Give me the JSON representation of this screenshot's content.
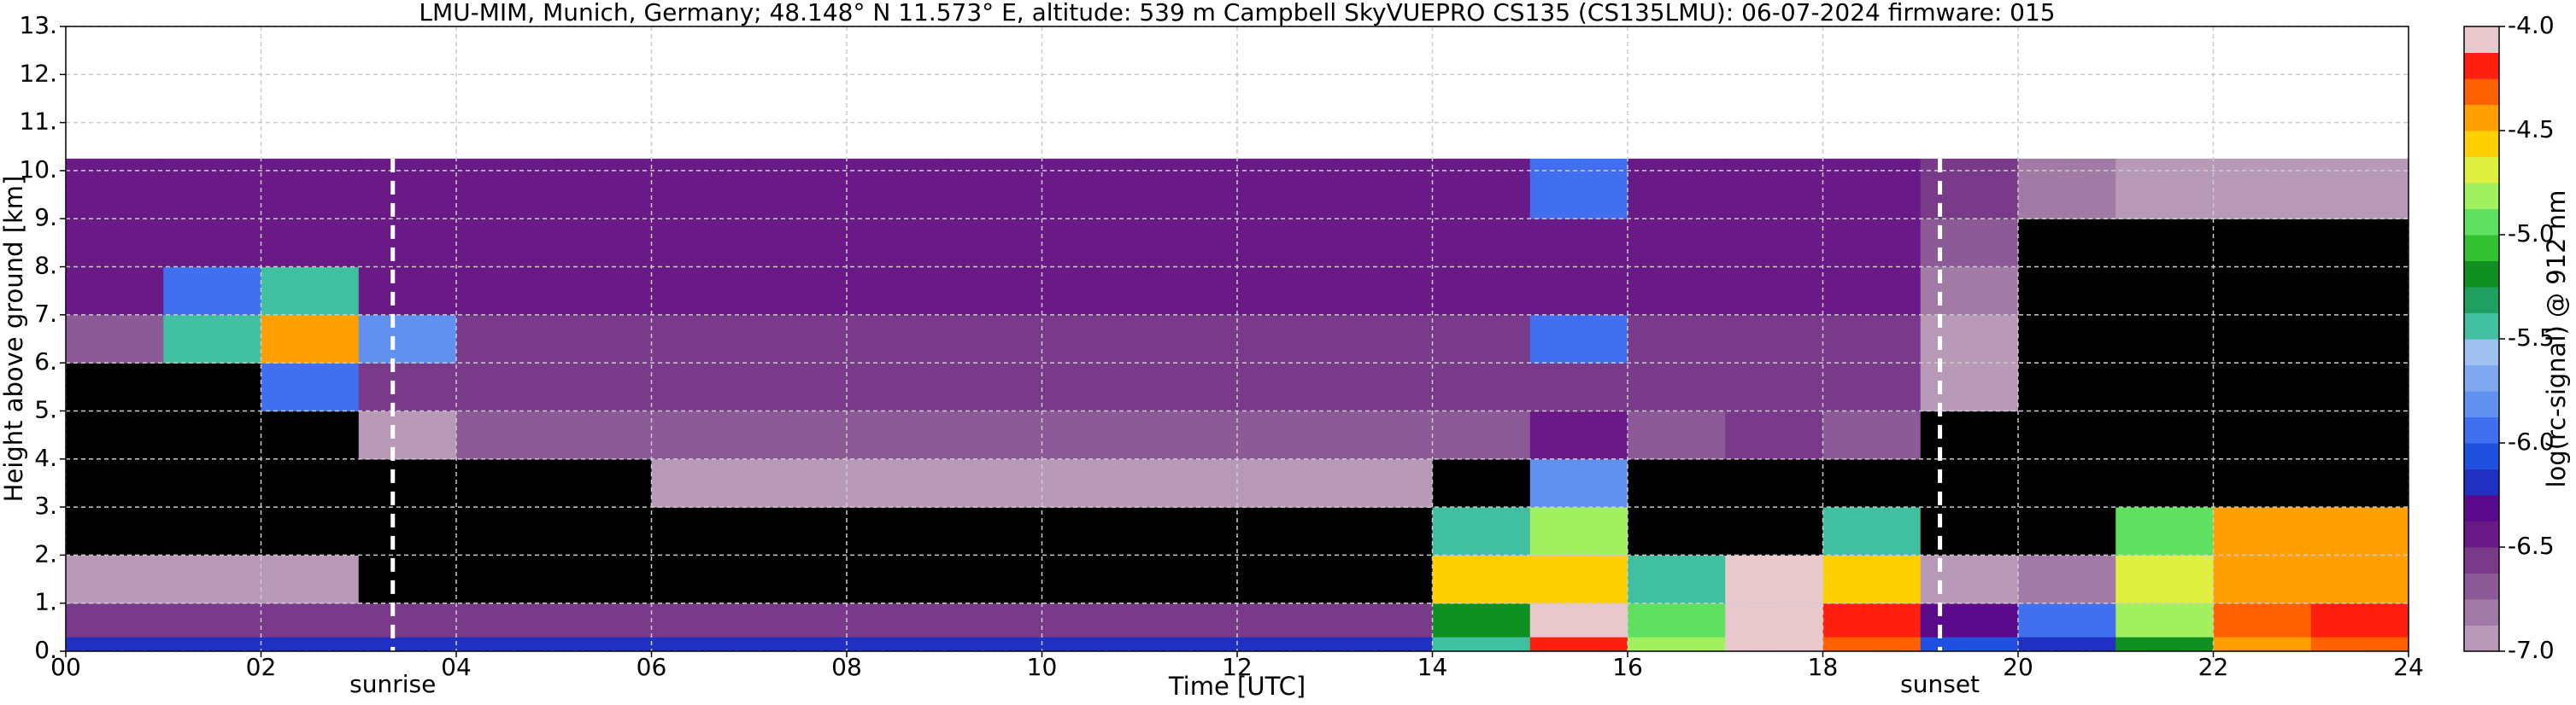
{
  "chart_data": {
    "type": "heatmap",
    "title": "LMU-MIM, Munich, Germany; 48.148° N 11.573° E, altitude: 539 m    Campbell SkyVUEPRO CS135 (CS135LMU): 06-07-2024    firmware: 015",
    "x_label": "Time [UTC]",
    "y_label": "Height above ground [km]",
    "colorbar_label": "log(rc-signal) @ 912 nm",
    "xlim": [
      0,
      24
    ],
    "ylim": [
      0,
      13
    ],
    "xticks": [
      {
        "value": 0,
        "label": "00"
      },
      {
        "value": 2,
        "label": "02"
      },
      {
        "value": 4,
        "label": "04"
      },
      {
        "value": 6,
        "label": "06"
      },
      {
        "value": 8,
        "label": "08"
      },
      {
        "value": 10,
        "label": "10"
      },
      {
        "value": 12,
        "label": "12"
      },
      {
        "value": 14,
        "label": "14"
      },
      {
        "value": 16,
        "label": "16"
      },
      {
        "value": 18,
        "label": "18"
      },
      {
        "value": 20,
        "label": "20"
      },
      {
        "value": 22,
        "label": "22"
      },
      {
        "value": 24,
        "label": "24"
      }
    ],
    "yticks": [
      {
        "value": 0,
        "label": "0."
      },
      {
        "value": 1,
        "label": "1."
      },
      {
        "value": 2,
        "label": "2."
      },
      {
        "value": 3,
        "label": "3."
      },
      {
        "value": 4,
        "label": "4."
      },
      {
        "value": 5,
        "label": "5."
      },
      {
        "value": 6,
        "label": "6."
      },
      {
        "value": 7,
        "label": "7."
      },
      {
        "value": 8,
        "label": "8."
      },
      {
        "value": 9,
        "label": "9."
      },
      {
        "value": 10,
        "label": "10."
      },
      {
        "value": 11,
        "label": "11."
      },
      {
        "value": 12,
        "label": "12."
      },
      {
        "value": 13,
        "label": "13."
      }
    ],
    "grid": true,
    "clim": [
      -7,
      -4
    ],
    "cticks": [
      {
        "value": -4,
        "label": "-4.0"
      },
      {
        "value": -4.5,
        "label": "-4.5"
      },
      {
        "value": -5,
        "label": "-5.0"
      },
      {
        "value": -5.5,
        "label": "-5.5"
      },
      {
        "value": -6,
        "label": "-6.0"
      },
      {
        "value": -6.5,
        "label": "-6.5"
      },
      {
        "value": -7,
        "label": "-7.0"
      }
    ],
    "colors": [
      "#b89ab8",
      "#a27aa6",
      "#8c5a96",
      "#7a3a8a",
      "#6a1a86",
      "#5a0a8a",
      "#2030c0",
      "#2050e0",
      "#4070f0",
      "#6090f0",
      "#80a8f0",
      "#a0c0f0",
      "#40c0a0",
      "#20a060",
      "#109020",
      "#30c030",
      "#60e060",
      "#a0f060",
      "#e0f040",
      "#ffd000",
      "#ffa000",
      "#ff6000",
      "#ff2010",
      "#e8c8cc"
    ],
    "under_color": "#000000",
    "x_edges": [
      0,
      1,
      2,
      3,
      4,
      5,
      6,
      7,
      8,
      9,
      10,
      11,
      12,
      13,
      14,
      15,
      16,
      17,
      18,
      19,
      20,
      21,
      22,
      23,
      24
    ],
    "y_edges": [
      0,
      0.3,
      1,
      2,
      3,
      4,
      5,
      6,
      7,
      8,
      9,
      10.25
    ],
    "z": [
      [
        -6.2,
        -6.2,
        -6.2,
        -6.2,
        -6.2,
        -6.2,
        -6.2,
        -6.2,
        -6.2,
        -6.2,
        -6.2,
        -6.2,
        -6.2,
        -6.2,
        -5.5,
        -4.2,
        -4.8,
        -4.0,
        -4.3,
        -6.1,
        -6.2,
        -5.2,
        -4.5,
        -4.3
      ],
      [
        -6.6,
        -6.6,
        -6.6,
        -6.6,
        -6.6,
        -6.6,
        -6.6,
        -6.6,
        -6.6,
        -6.6,
        -6.6,
        -6.6,
        -6.6,
        -6.6,
        -5.2,
        -4.0,
        -5.0,
        -4.0,
        -4.2,
        -6.3,
        -6.0,
        -4.8,
        -4.3,
        -4.2
      ],
      [
        -6.9,
        -6.9,
        -6.9,
        -7.5,
        -7.5,
        -7.5,
        -7.5,
        -7.5,
        -7.5,
        -7.5,
        -7.5,
        -7.5,
        -7.5,
        -7.5,
        -4.6,
        -4.6,
        -5.5,
        -4.1,
        -4.6,
        -6.9,
        -6.8,
        -4.7,
        -4.4,
        -4.5
      ],
      [
        -7.5,
        -7.5,
        -7.5,
        -7.5,
        -7.5,
        -7.5,
        -7.5,
        -7.5,
        -7.5,
        -7.5,
        -7.5,
        -7.5,
        -7.5,
        -7.5,
        -5.4,
        -4.8,
        -7.5,
        -7.5,
        -5.5,
        -7.5,
        -7.5,
        -5.0,
        -4.4,
        -4.5
      ],
      [
        -7.5,
        -7.5,
        -7.5,
        -7.5,
        -7.5,
        -7.5,
        -6.9,
        -6.9,
        -6.9,
        -6.9,
        -6.9,
        -6.9,
        -6.9,
        -6.9,
        -7.5,
        -5.8,
        -7.5,
        -7.5,
        -7.5,
        -7.5,
        -7.5,
        -7.5,
        -7.5,
        -7.5
      ],
      [
        -7.5,
        -7.5,
        -7.5,
        -7.0,
        -6.7,
        -6.7,
        -6.7,
        -6.7,
        -6.7,
        -6.7,
        -6.7,
        -6.7,
        -6.7,
        -6.7,
        -6.7,
        -6.5,
        -6.7,
        -6.6,
        -6.7,
        -7.2,
        -7.5,
        -7.5,
        -7.5,
        -7.5
      ],
      [
        -7.5,
        -7.5,
        -6.0,
        -6.6,
        -6.6,
        -6.6,
        -6.6,
        -6.6,
        -6.6,
        -6.6,
        -6.6,
        -6.6,
        -6.6,
        -6.6,
        -6.6,
        -6.6,
        -6.6,
        -6.6,
        -6.6,
        -7.0,
        -7.5,
        -7.5,
        -7.5,
        -7.5
      ],
      [
        -6.7,
        -5.5,
        -4.5,
        -5.8,
        -6.6,
        -6.6,
        -6.6,
        -6.6,
        -6.6,
        -6.6,
        -6.6,
        -6.6,
        -6.6,
        -6.6,
        -6.6,
        -6.0,
        -6.6,
        -6.6,
        -6.6,
        -6.9,
        -7.5,
        -7.5,
        -7.5,
        -7.5
      ],
      [
        -6.5,
        -6.0,
        -5.5,
        -6.5,
        -6.5,
        -6.5,
        -6.5,
        -6.5,
        -6.5,
        -6.5,
        -6.5,
        -6.5,
        -6.5,
        -6.5,
        -6.5,
        -6.5,
        -6.5,
        -6.5,
        -6.5,
        -6.8,
        -7.5,
        -7.5,
        -7.5,
        -7.5
      ],
      [
        -6.5,
        -6.5,
        -6.5,
        -6.5,
        -6.5,
        -6.5,
        -6.5,
        -6.5,
        -6.5,
        -6.5,
        -6.5,
        -6.5,
        -6.5,
        -6.5,
        -6.5,
        -6.5,
        -6.5,
        -6.5,
        -6.5,
        -6.7,
        -7.3,
        -7.3,
        -7.3,
        -7.3
      ],
      [
        -6.5,
        -6.5,
        -6.5,
        -6.5,
        -6.5,
        -6.5,
        -6.5,
        -6.5,
        -6.5,
        -6.5,
        -6.5,
        -6.5,
        -6.5,
        -6.5,
        -6.5,
        -6.0,
        -6.5,
        -6.5,
        -6.5,
        -6.6,
        -6.8,
        -7.0,
        -7.0,
        -7.0
      ]
    ],
    "annotations": [
      {
        "text": "sunrise",
        "x": 3.35
      },
      {
        "text": "sunset",
        "x": 19.2
      }
    ]
  }
}
